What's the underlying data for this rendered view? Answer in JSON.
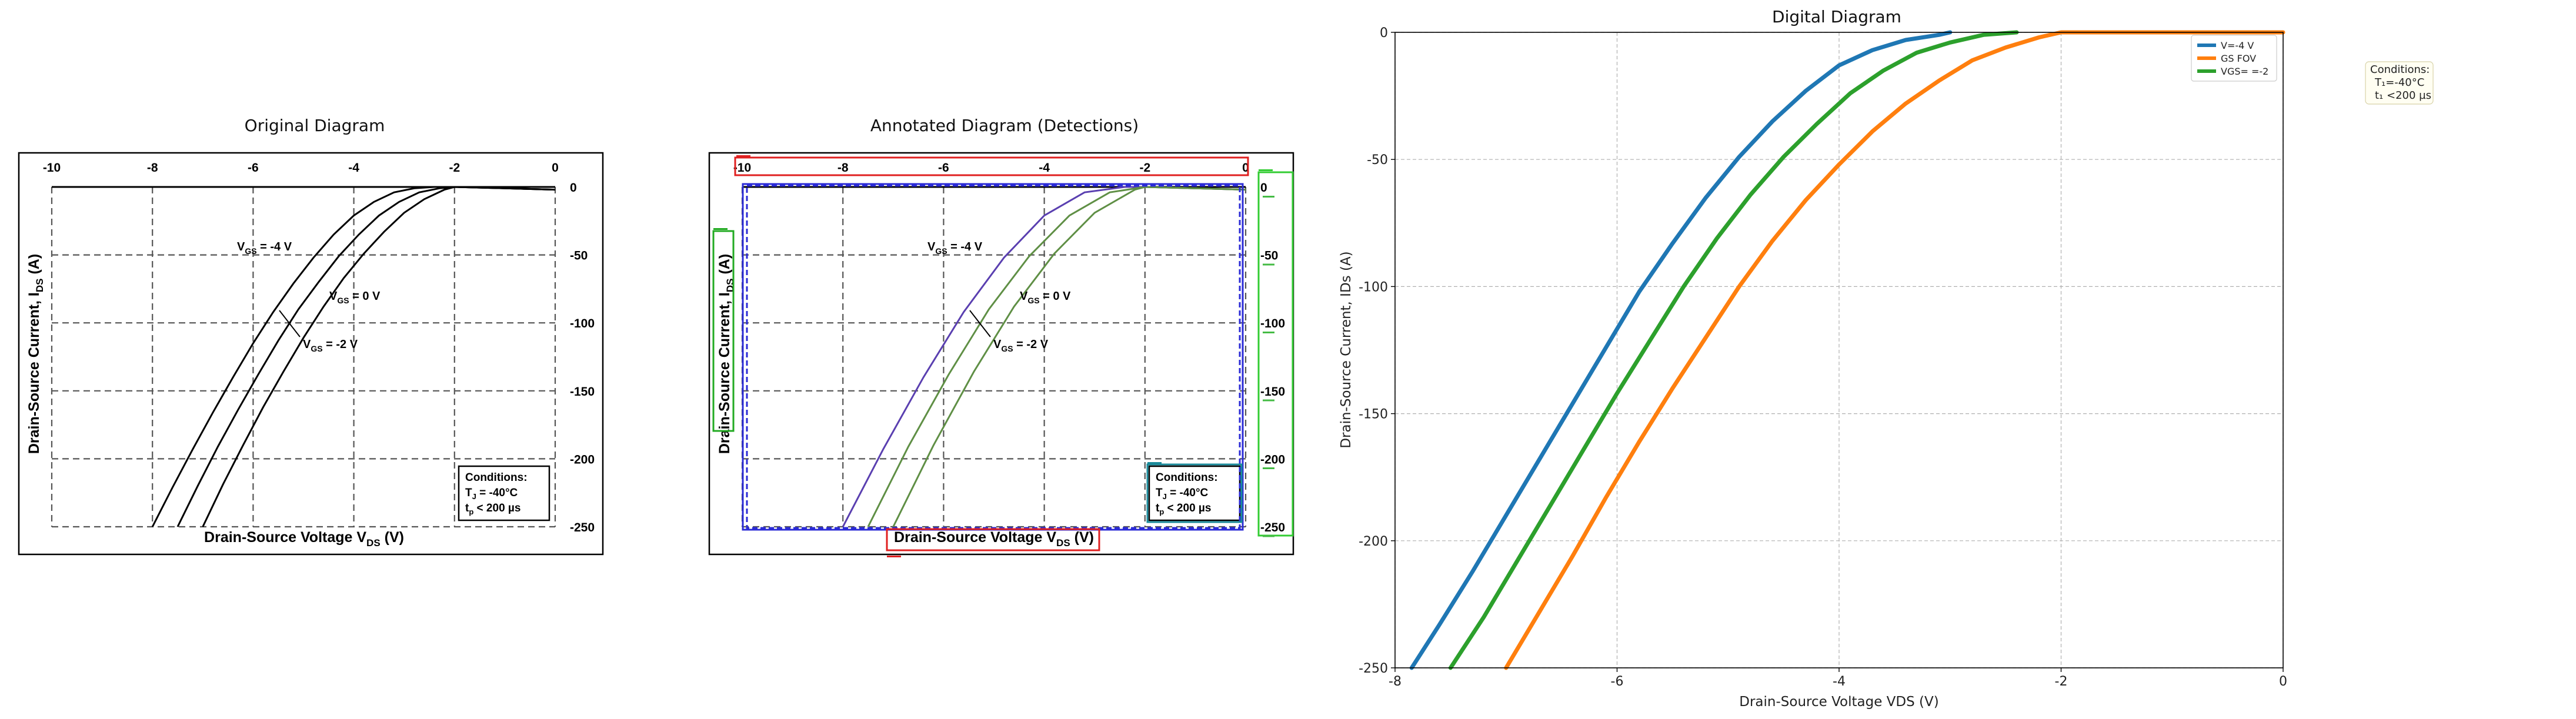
{
  "panels": {
    "original": {
      "title": "Original Diagram",
      "xlabel_main": "Drain-Source Voltage V",
      "xlabel_sub": "DS",
      "xlabel_unit": " (V)",
      "ylabel_main": "Drain-Source Current, I",
      "ylabel_sub": "DS",
      "ylabel_unit": " (A)",
      "x_ticks": [
        "-10",
        "-8",
        "-6",
        "-4",
        "-2",
        "0"
      ],
      "y_ticks": [
        "0",
        "-50",
        "-100",
        "-150",
        "-200",
        "-250"
      ],
      "annotations": {
        "vgs_neg4": {
          "v": "V",
          "sub": "GS",
          "val": " = -4 V"
        },
        "vgs_0": {
          "v": "V",
          "sub": "GS",
          "val": " = 0 V"
        },
        "vgs_neg2": {
          "v": "V",
          "sub": "GS",
          "val": " = -2 V"
        }
      },
      "conditions": {
        "heading": "Conditions:",
        "line1_main": "T",
        "line1_sub": "J",
        "line1_val": " = -40°C",
        "line2_main": "t",
        "line2_sub": "p",
        "line2_val": " < 200 µs"
      }
    },
    "annotated": {
      "title": "Annotated Diagram (Detections)",
      "colors": {
        "title_box": "#e02020",
        "axis_box": "#2b2bd6",
        "ylabel_box": "#22aa22",
        "yticks_box": "#33cc33",
        "legend_box": "#1a8a9a",
        "curve_1": "#5a3fb0",
        "curve_2": "#5f8f45",
        "curve_3": "#5f8f45"
      }
    },
    "digital": {
      "title": "Digital Diagram",
      "xlabel": "Drain-Source Voltage VDS (V)",
      "ylabel": "Drain-Source Current, IDs (A)",
      "x_ticks": [
        "-8",
        "-6",
        "-4",
        "-2",
        "0"
      ],
      "y_ticks": [
        "0",
        "-50",
        "-100",
        "-150",
        "-200",
        "-250"
      ],
      "legend": [
        "V=-4 V",
        "GS FOV",
        "VGS= =-2"
      ],
      "conditions": [
        "Conditions:",
        "T₁=-40°C",
        "t₁ <200 µs"
      ]
    }
  },
  "chart_data": [
    {
      "type": "line",
      "title": "Original Diagram",
      "xlabel": "Drain-Source Voltage VDS (V)",
      "ylabel": "Drain-Source Current, IDS (A)",
      "xlim": [
        -10,
        0
      ],
      "ylim": [
        -250,
        0
      ],
      "grid": true,
      "series": [
        {
          "name": "VGS = -4 V",
          "x": [
            -8.0,
            -7.6,
            -7.2,
            -6.8,
            -6.4,
            -6.0,
            -5.6,
            -5.2,
            -4.8,
            -4.4,
            -4.0,
            -3.6,
            -3.2,
            -2.8,
            -2.4,
            -2.0,
            -1.0,
            0.0
          ],
          "y": [
            -250,
            -221,
            -193,
            -166,
            -140,
            -115,
            -92,
            -71,
            -52,
            -35,
            -21,
            -11,
            -4,
            -1,
            0,
            0,
            -1,
            -2
          ]
        },
        {
          "name": "VGS = 0 V",
          "x": [
            -7.5,
            -7.1,
            -6.7,
            -6.3,
            -5.9,
            -5.5,
            -5.1,
            -4.7,
            -4.3,
            -3.9,
            -3.5,
            -3.1,
            -2.7,
            -2.3,
            -2.0,
            -1.0,
            0.0
          ],
          "y": [
            -250,
            -220,
            -191,
            -164,
            -138,
            -113,
            -90,
            -70,
            -51,
            -35,
            -21,
            -11,
            -4,
            -1,
            0,
            -1,
            -2
          ]
        },
        {
          "name": "VGS = -2 V",
          "x": [
            -7.0,
            -6.6,
            -6.2,
            -5.8,
            -5.4,
            -5.0,
            -4.6,
            -4.2,
            -3.8,
            -3.4,
            -3.0,
            -2.6,
            -2.2,
            -2.0,
            -1.0,
            0.0
          ],
          "y": [
            -250,
            -219,
            -190,
            -162,
            -136,
            -111,
            -88,
            -67,
            -49,
            -33,
            -19,
            -9,
            -2,
            0,
            -1,
            -2
          ]
        }
      ]
    },
    {
      "type": "line",
      "title": "Annotated Diagram (Detections)",
      "xlim": [
        -10,
        0
      ],
      "ylim": [
        -250,
        0
      ],
      "grid": true,
      "series": [
        {
          "name": "VGS = -4 V",
          "x": [
            -8.0,
            -7.2,
            -6.4,
            -5.6,
            -4.8,
            -4.0,
            -3.2,
            -2.4,
            -2.0,
            0.0
          ],
          "y": [
            -250,
            -193,
            -140,
            -92,
            -52,
            -21,
            -4,
            0,
            0,
            -2
          ]
        },
        {
          "name": "VGS = 0 V",
          "x": [
            -7.5,
            -6.7,
            -5.9,
            -5.1,
            -4.3,
            -3.5,
            -2.7,
            -2.0,
            0.0
          ],
          "y": [
            -250,
            -191,
            -138,
            -90,
            -51,
            -21,
            -4,
            0,
            -2
          ]
        },
        {
          "name": "VGS = -2 V",
          "x": [
            -7.0,
            -6.2,
            -5.4,
            -4.6,
            -3.8,
            -3.0,
            -2.2,
            -2.0,
            0.0
          ],
          "y": [
            -250,
            -190,
            -136,
            -88,
            -49,
            -19,
            -2,
            0,
            -2
          ]
        }
      ]
    },
    {
      "type": "line",
      "title": "Digital Diagram",
      "xlabel": "Drain-Source Voltage VDS (V)",
      "ylabel": "Drain-Source Current, IDs (A)",
      "xlim": [
        -8,
        0
      ],
      "ylim": [
        -250,
        0
      ],
      "grid": true,
      "legend_position": "top-right",
      "series": [
        {
          "name": "V=-4 V",
          "color": "#1f77b4",
          "x": [
            -7.85,
            -7.6,
            -7.3,
            -7.0,
            -6.7,
            -6.4,
            -6.1,
            -5.8,
            -5.5,
            -5.2,
            -4.9,
            -4.6,
            -4.3,
            -4.0,
            -3.7,
            -3.4,
            -3.1,
            -3.0
          ],
          "y": [
            -250,
            -233,
            -212,
            -190,
            -168,
            -146,
            -124,
            -102,
            -83,
            -65,
            -49,
            -35,
            -23,
            -13,
            -7,
            -3,
            -1,
            0
          ]
        },
        {
          "name": "GS FOV",
          "color": "#ff7f0e",
          "x": [
            -7.0,
            -6.7,
            -6.4,
            -6.1,
            -5.8,
            -5.5,
            -5.2,
            -4.9,
            -4.6,
            -4.3,
            -4.0,
            -3.7,
            -3.4,
            -3.1,
            -2.8,
            -2.5,
            -2.2,
            -2.0,
            -1.0,
            0.0
          ],
          "y": [
            -250,
            -228,
            -206,
            -183,
            -161,
            -140,
            -120,
            -100,
            -82,
            -66,
            -52,
            -39,
            -28,
            -19,
            -11,
            -6,
            -2,
            0,
            0,
            0
          ]
        },
        {
          "name": "VGS= =-2",
          "color": "#2ca02c",
          "x": [
            -7.5,
            -7.2,
            -6.9,
            -6.6,
            -6.3,
            -6.0,
            -5.7,
            -5.4,
            -5.1,
            -4.8,
            -4.5,
            -4.2,
            -3.9,
            -3.6,
            -3.3,
            -3.0,
            -2.7,
            -2.4
          ],
          "y": [
            -250,
            -230,
            -208,
            -186,
            -164,
            -142,
            -121,
            -100,
            -81,
            -64,
            -49,
            -36,
            -24,
            -15,
            -8,
            -4,
            -1,
            0
          ]
        }
      ]
    }
  ]
}
